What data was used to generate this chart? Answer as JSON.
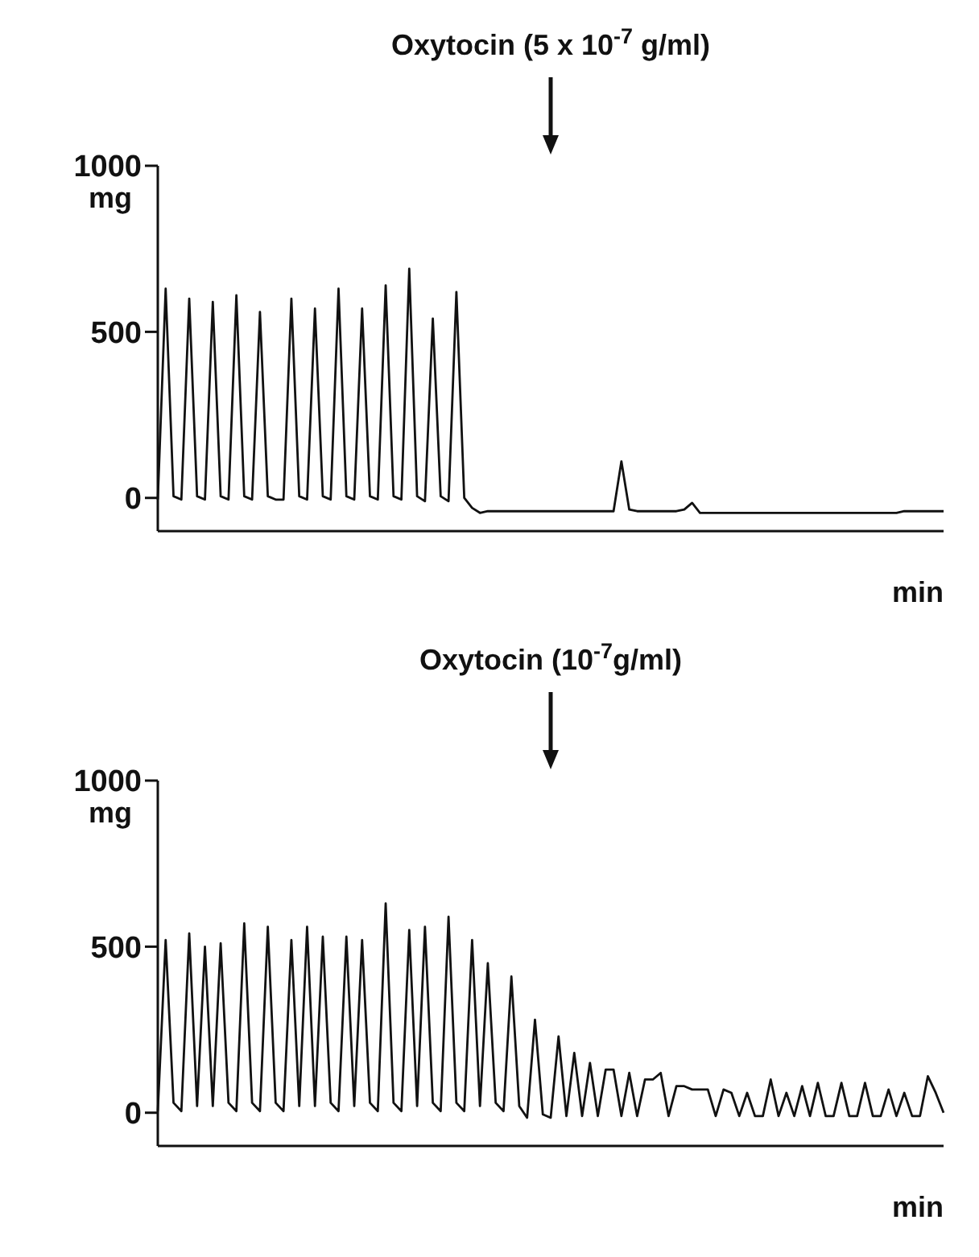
{
  "chart_data": [
    {
      "type": "line",
      "xlabel": "min",
      "ylabel": "mg",
      "color": "#111111",
      "marker": "none",
      "line_style": "solid",
      "tick_labels": "y",
      "ylim": [
        -100,
        1000
      ],
      "yticks": [
        0,
        500,
        1000
      ],
      "annotations": [
        "Oxytocin (5 x 10$^{-7}$ g/ml)"
      ],
      "categories": [
        null,
        null,
        null,
        null,
        null,
        null,
        null,
        null,
        null,
        null,
        null,
        null,
        null,
        null,
        null,
        null,
        null,
        null,
        null,
        null,
        null,
        null,
        null,
        null,
        null,
        null,
        null,
        null,
        null,
        null,
        null,
        null,
        null,
        null,
        null,
        null,
        null,
        null,
        null,
        null,
        null,
        null,
        null,
        null,
        null,
        null,
        null,
        null,
        null,
        null,
        null,
        null,
        null,
        null,
        null,
        null,
        null,
        null,
        null,
        null,
        null,
        null,
        null,
        null,
        null,
        null,
        null,
        null,
        null,
        null,
        null,
        null,
        null,
        null,
        null,
        null,
        null,
        null,
        null,
        null,
        null,
        null,
        null,
        null,
        null,
        null,
        null,
        null,
        null,
        null,
        null,
        null,
        null,
        null,
        null,
        null,
        null,
        null,
        null,
        null,
        null
      ],
      "values": [
        -5,
        630,
        5,
        -5,
        600,
        5,
        -5,
        590,
        5,
        -5,
        610,
        5,
        -5,
        560,
        5,
        -5,
        -5,
        600,
        5,
        -5,
        570,
        5,
        -5,
        630,
        5,
        -5,
        570,
        5,
        -5,
        640,
        5,
        -5,
        690,
        5,
        -10,
        540,
        5,
        -10,
        620,
        0,
        -30,
        -45,
        -40,
        -40,
        -40,
        -40,
        -40,
        -40,
        -40,
        -40,
        -40,
        -40,
        -40,
        -40,
        -40,
        -40,
        -40,
        -40,
        -40,
        110,
        -35,
        -40,
        -40,
        -40,
        -40,
        -40,
        -40,
        -35,
        -15,
        -45,
        -45,
        -45,
        -45,
        -45,
        -45,
        -45,
        -45,
        -45,
        -45,
        -45,
        -45,
        -45,
        -45,
        -45,
        -45,
        -45,
        -45,
        -45,
        -45,
        -45,
        -45,
        -45,
        -45,
        -45,
        -45,
        -40,
        -40,
        -40,
        -40,
        -40,
        -40
      ]
    },
    {
      "type": "line",
      "xlabel": "min",
      "ylabel": "mg",
      "color": "#111111",
      "marker": "none",
      "line_style": "solid",
      "tick_labels": "y",
      "ylim": [
        -100,
        1000
      ],
      "yticks": [
        0,
        500,
        1000
      ],
      "annotations": [
        "Oxytocin (10$^{-7}$g/ml)"
      ],
      "categories": [
        null,
        null,
        null,
        null,
        null,
        null,
        null,
        null,
        null,
        null,
        null,
        null,
        null,
        null,
        null,
        null,
        null,
        null,
        null,
        null,
        null,
        null,
        null,
        null,
        null,
        null,
        null,
        null,
        null,
        null,
        null,
        null,
        null,
        null,
        null,
        null,
        null,
        null,
        null,
        null,
        null,
        null,
        null,
        null,
        null,
        null,
        null,
        null,
        null,
        null,
        null,
        null,
        null,
        null,
        null,
        null,
        null,
        null,
        null,
        null,
        null,
        null,
        null,
        null,
        null,
        null,
        null,
        null,
        null,
        null,
        null,
        null,
        null,
        null,
        null,
        null,
        null,
        null,
        null,
        null,
        null,
        null,
        null,
        null,
        null,
        null,
        null,
        null,
        null,
        null,
        null,
        null,
        null,
        null,
        null,
        null,
        null,
        null,
        null,
        null,
        null
      ],
      "values": [
        5,
        520,
        30,
        5,
        540,
        20,
        500,
        20,
        510,
        30,
        5,
        570,
        30,
        5,
        560,
        30,
        5,
        520,
        20,
        560,
        20,
        530,
        30,
        5,
        530,
        20,
        520,
        30,
        5,
        630,
        30,
        5,
        550,
        20,
        560,
        30,
        5,
        590,
        30,
        5,
        520,
        20,
        450,
        30,
        5,
        410,
        20,
        -15,
        280,
        -5,
        -15,
        230,
        -10,
        180,
        -10,
        150,
        -10,
        130,
        130,
        -10,
        120,
        -10,
        100,
        100,
        120,
        -10,
        80,
        80,
        70,
        70,
        70,
        -10,
        70,
        60,
        -10,
        60,
        -10,
        -10,
        100,
        -10,
        60,
        -10,
        80,
        -10,
        90,
        -10,
        -10,
        90,
        -10,
        -10,
        90,
        -10,
        -10,
        70,
        -10,
        60,
        -10,
        -10,
        110,
        60,
        0
      ]
    }
  ]
}
